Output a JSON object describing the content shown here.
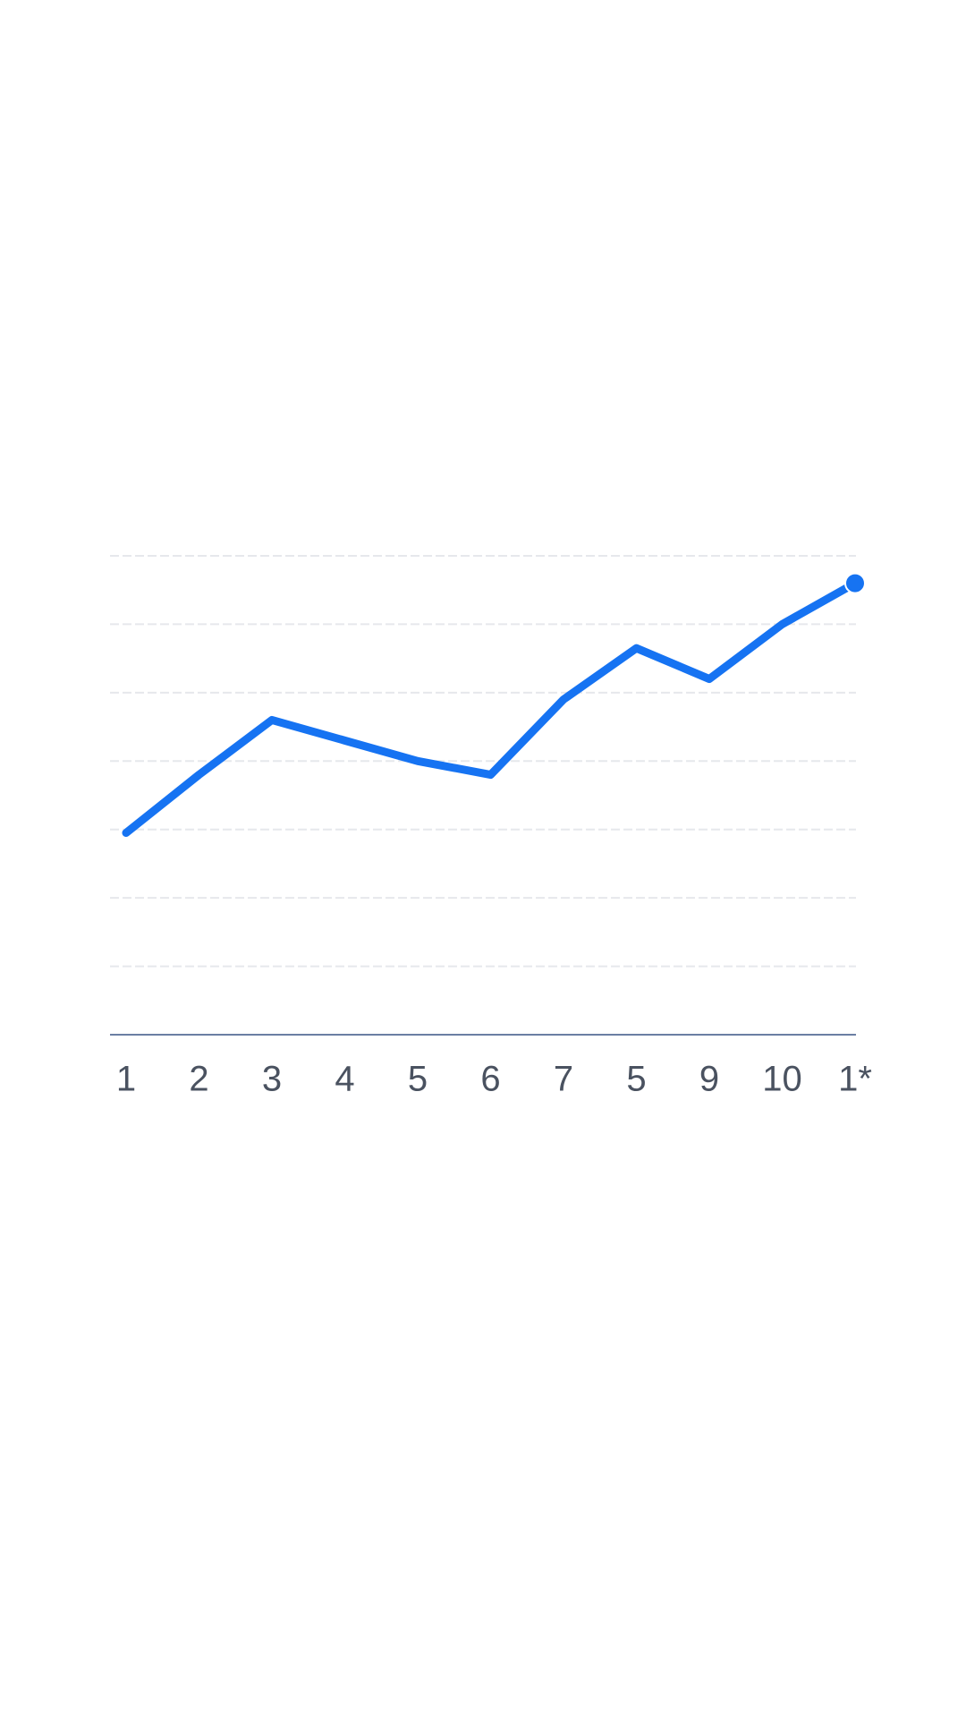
{
  "chart_data": {
    "type": "line",
    "categories": [
      "1",
      "2",
      "3",
      "4",
      "5",
      "6",
      "7",
      "5",
      "9",
      "10",
      "1*"
    ],
    "series": [
      {
        "color": "#1673f2",
        "values": [
          2.95,
          3.8,
          4.6,
          4.3,
          4.0,
          3.8,
          4.9,
          5.65,
          5.2,
          6.0,
          6.6
        ]
      }
    ],
    "ylim": [
      0,
      7
    ],
    "yticks": [
      0,
      1,
      2,
      3,
      4,
      5,
      6,
      7
    ],
    "grid": true
  }
}
